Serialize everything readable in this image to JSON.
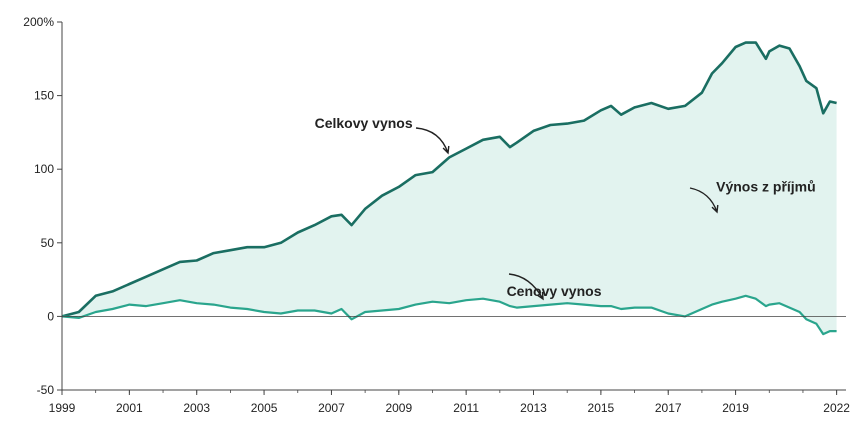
{
  "chart_data": {
    "type": "line",
    "title": "",
    "xlabel": "",
    "ylabel": "",
    "xlim": [
      1999,
      2022.1
    ],
    "ylim": [
      -50,
      200
    ],
    "yticks": [
      -50,
      0,
      50,
      100,
      150,
      200
    ],
    "ytick_labels": [
      "-50",
      "0",
      "50",
      "100",
      "150",
      "200%"
    ],
    "xticks": [
      1999,
      2001,
      2003,
      2005,
      2007,
      2009,
      2011,
      2013,
      2015,
      2017,
      2019,
      2022
    ],
    "xtick_labels": [
      "1999",
      "2001",
      "2003",
      "2005",
      "2007",
      "2009",
      "2011",
      "2013",
      "2015",
      "2017",
      "2019",
      "2022"
    ],
    "colors": {
      "total": "#1a6e62",
      "price": "#2aa58d",
      "fill": "#e2f3ef",
      "axis": "#444444"
    },
    "fill_between": "Výnos z příjmů",
    "series": [
      {
        "name": "Celkovy vynos",
        "x": [
          1999,
          1999.5,
          2000,
          2000.5,
          2001,
          2001.5,
          2002,
          2002.5,
          2003,
          2003.5,
          2004,
          2004.5,
          2005,
          2005.5,
          2006,
          2006.5,
          2007,
          2007.3,
          2007.6,
          2008,
          2008.5,
          2009,
          2009.5,
          2010,
          2010.5,
          2011,
          2011.5,
          2012,
          2012.3,
          2012.5,
          2013,
          2013.5,
          2014,
          2014.5,
          2015,
          2015.3,
          2015.6,
          2016,
          2016.5,
          2017,
          2017.5,
          2018,
          2018.3,
          2018.6,
          2019,
          2019.3,
          2019.6,
          2019.9,
          2020,
          2020.3,
          2020.6,
          2020.9,
          2021.1,
          2021.4,
          2021.6,
          2021.8,
          2022
        ],
        "values": [
          0,
          3,
          14,
          17,
          22,
          27,
          32,
          37,
          38,
          43,
          45,
          47,
          47,
          50,
          57,
          62,
          68,
          69,
          62,
          73,
          82,
          88,
          96,
          98,
          108,
          114,
          120,
          122,
          115,
          118,
          126,
          130,
          131,
          133,
          140,
          143,
          137,
          142,
          145,
          141,
          143,
          152,
          165,
          172,
          183,
          186,
          186,
          175,
          180,
          184,
          182,
          170,
          160,
          155,
          138,
          146,
          145
        ]
      },
      {
        "name": "Cenovy vynos",
        "x": [
          1999,
          1999.5,
          2000,
          2000.5,
          2001,
          2001.5,
          2002,
          2002.5,
          2003,
          2003.5,
          2004,
          2004.5,
          2005,
          2005.5,
          2006,
          2006.5,
          2007,
          2007.3,
          2007.6,
          2008,
          2008.5,
          2009,
          2009.5,
          2010,
          2010.5,
          2011,
          2011.5,
          2012,
          2012.3,
          2012.5,
          2013,
          2013.5,
          2014,
          2014.5,
          2015,
          2015.3,
          2015.6,
          2016,
          2016.5,
          2017,
          2017.5,
          2018,
          2018.3,
          2018.6,
          2019,
          2019.3,
          2019.6,
          2019.9,
          2020,
          2020.3,
          2020.6,
          2020.9,
          2021.1,
          2021.4,
          2021.6,
          2021.8,
          2022
        ],
        "values": [
          0,
          -1,
          3,
          5,
          8,
          7,
          9,
          11,
          9,
          8,
          6,
          5,
          3,
          2,
          4,
          4,
          2,
          5,
          -2,
          3,
          4,
          5,
          8,
          10,
          9,
          11,
          12,
          10,
          7,
          6,
          7,
          8,
          9,
          8,
          7,
          7,
          5,
          6,
          6,
          2,
          0,
          5,
          8,
          10,
          12,
          14,
          12,
          7,
          8,
          9,
          6,
          3,
          -2,
          -5,
          -12,
          -10,
          -10
        ]
      }
    ],
    "annotations": [
      {
        "text": "Celkovy vynos",
        "x": 2006.5,
        "y": 128
      },
      {
        "text": "Výnos z příjmů",
        "x": 2019.9,
        "y": 85
      },
      {
        "text": "Cenovy vynos",
        "x": 2012.2,
        "y": 14
      }
    ]
  }
}
